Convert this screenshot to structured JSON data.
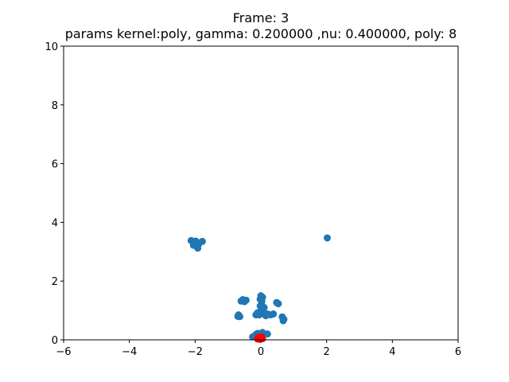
{
  "chart_data": {
    "type": "scatter",
    "title": "Frame: 3",
    "subtitle": "params kernel:poly, gamma: 0.200000 ,nu: 0.400000, poly: 8",
    "xlabel": "",
    "ylabel": "",
    "xlim": [
      -6,
      6
    ],
    "ylim": [
      0,
      10
    ],
    "x_ticks": [
      -6,
      -4,
      -2,
      0,
      2,
      4,
      6
    ],
    "y_ticks": [
      0,
      2,
      4,
      6,
      8,
      10
    ],
    "x_tick_labels": [
      "−6",
      "−4",
      "−2",
      "0",
      "2",
      "4",
      "6"
    ],
    "y_tick_labels": [
      "0",
      "2",
      "4",
      "6",
      "8",
      "10"
    ],
    "grid": false,
    "series": [
      {
        "color": "#1f77b4",
        "points": [
          [
            -2.12,
            3.38
          ],
          [
            -2.02,
            3.3
          ],
          [
            -1.97,
            3.2
          ],
          [
            -1.92,
            3.12
          ],
          [
            -1.88,
            3.3
          ],
          [
            -2.05,
            3.22
          ],
          [
            -1.98,
            3.36
          ],
          [
            -1.78,
            3.35
          ],
          [
            -1.9,
            3.25
          ],
          [
            2.02,
            3.47
          ],
          [
            -0.55,
            1.37
          ],
          [
            -0.5,
            1.3
          ],
          [
            -0.45,
            1.35
          ],
          [
            -0.6,
            1.32
          ],
          [
            0.0,
            1.5
          ],
          [
            0.05,
            1.45
          ],
          [
            -0.02,
            1.38
          ],
          [
            0.03,
            1.3
          ],
          [
            0.48,
            1.27
          ],
          [
            0.53,
            1.23
          ],
          [
            -0.02,
            1.15
          ],
          [
            0.05,
            1.05
          ],
          [
            0.1,
            1.1
          ],
          [
            0.0,
            0.98
          ],
          [
            0.08,
            0.9
          ],
          [
            -0.1,
            0.92
          ],
          [
            -0.15,
            0.85
          ],
          [
            -0.05,
            0.85
          ],
          [
            0.15,
            0.82
          ],
          [
            0.2,
            0.88
          ],
          [
            0.3,
            0.85
          ],
          [
            0.38,
            0.88
          ],
          [
            -0.68,
            0.85
          ],
          [
            -0.64,
            0.79
          ],
          [
            -0.7,
            0.8
          ],
          [
            0.65,
            0.78
          ],
          [
            0.7,
            0.7
          ],
          [
            0.68,
            0.65
          ],
          [
            -0.15,
            0.18
          ],
          [
            -0.1,
            0.22
          ],
          [
            0.05,
            0.25
          ],
          [
            0.2,
            0.2
          ],
          [
            -0.25,
            0.1
          ]
        ]
      },
      {
        "color": "#ff0000",
        "points": [
          [
            -0.08,
            0.08
          ],
          [
            0.0,
            0.05
          ],
          [
            -0.05,
            0.02
          ],
          [
            0.02,
            0.1
          ],
          [
            -0.1,
            0.03
          ],
          [
            0.05,
            0.04
          ]
        ]
      }
    ]
  }
}
